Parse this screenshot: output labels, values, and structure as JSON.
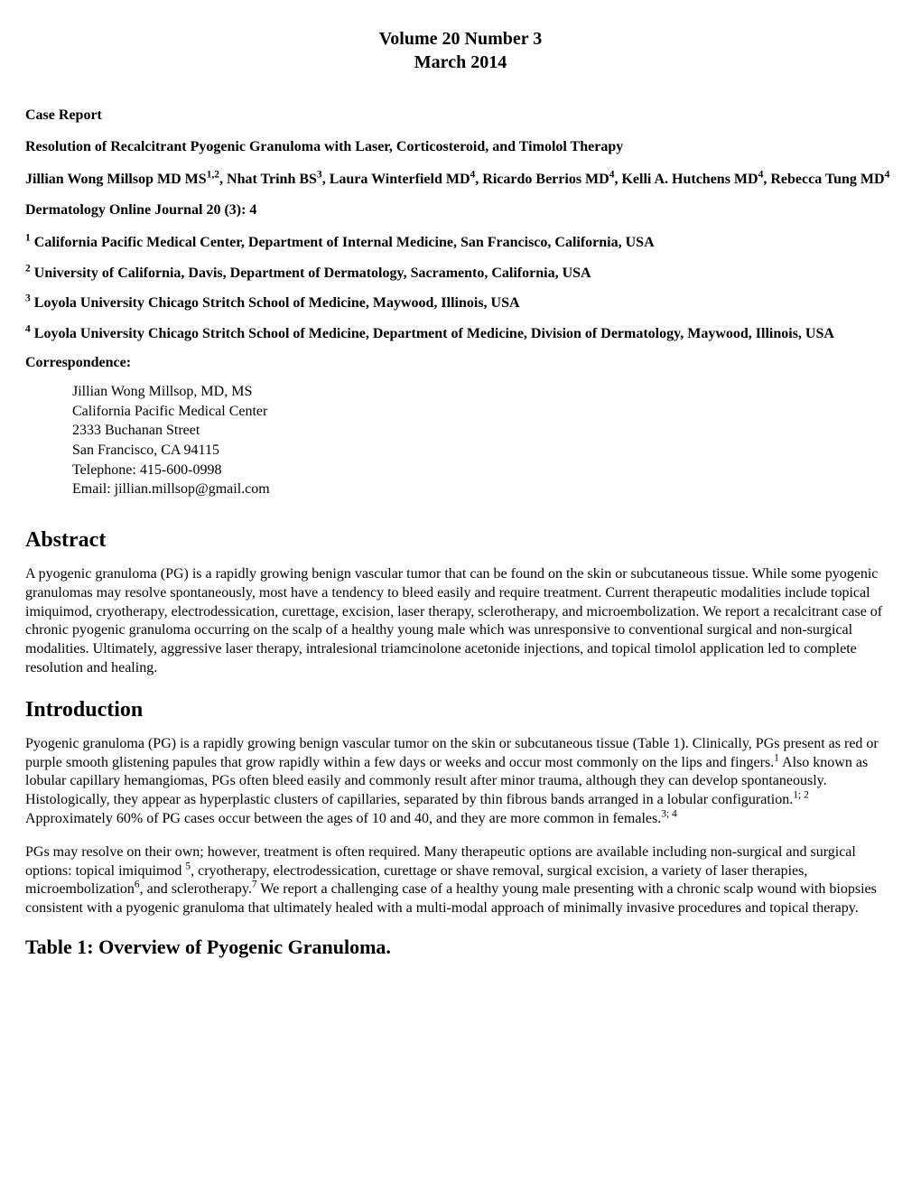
{
  "header": {
    "volume_line": "Volume 20 Number 3",
    "date_line": "March 2014"
  },
  "article": {
    "section_label": "Case Report",
    "title": "Resolution of Recalcitrant Pyogenic Granuloma with Laser, Corticosteroid, and Timolol Therapy",
    "authors_parts": {
      "a1_name": "Jillian Wong Millsop MD MS",
      "a1_sup": "1,2",
      "sep1": ", ",
      "a2_name": "Nhat Trinh BS",
      "a2_sup": "3",
      "sep2": ", ",
      "a3_name": "Laura Winterfield MD",
      "a3_sup": "4",
      "sep3": ", ",
      "a4_name": "Ricardo Berrios MD",
      "a4_sup": "4",
      "sep4": ", ",
      "a5_name": "Kelli A. Hutchens MD",
      "a5_sup": "4",
      "sep5": ", ",
      "a6_name": "Rebecca Tung MD",
      "a6_sup": "4"
    },
    "journal": "Dermatology Online Journal 20 (3): 4",
    "affiliations": {
      "a1_sup": "1",
      "a1_text": " California Pacific Medical Center, Department of Internal Medicine, San Francisco, California, USA",
      "a2_sup": "2",
      "a2_text": " University of California, Davis, Department of Dermatology, Sacramento, California, USA",
      "a3_sup": "3",
      "a3_text": " Loyola University Chicago Stritch School of Medicine, Maywood, Illinois, USA",
      "a4_sup": "4",
      "a4_text": " Loyola University Chicago Stritch School of Medicine, Department of Medicine, Division of Dermatology, Maywood, Illinois, USA"
    },
    "correspondence": {
      "label": "Correspondence:",
      "name": "Jillian Wong Millsop, MD, MS",
      "institution": "California Pacific Medical Center",
      "street": "2333 Buchanan Street",
      "city": "San Francisco, CA  94115",
      "phone": "Telephone: 415-600-0998",
      "email": "Email: jillian.millsop@gmail.com"
    }
  },
  "sections": {
    "abstract": {
      "heading": "Abstract",
      "body": "A pyogenic granuloma (PG) is a rapidly growing benign vascular tumor that can be found on the skin or subcutaneous tissue. While some pyogenic granulomas may resolve spontaneously, most have a tendency to bleed easily and require treatment. Current therapeutic modalities include topical imiquimod, cryotherapy, electrodessication, curettage, excision, laser therapy, sclerotherapy, and microembolization. We report a recalcitrant case of chronic pyogenic granuloma occurring on the scalp of a healthy young male which was unresponsive to conventional surgical and non-surgical modalities.  Ultimately, aggressive laser therapy, intralesional triamcinolone acetonide injections, and topical timolol application led to complete resolution and healing."
    },
    "introduction": {
      "heading": "Introduction",
      "p1": {
        "t1": "Pyogenic granuloma (PG) is a rapidly growing benign vascular tumor on the skin or subcutaneous tissue (Table 1). Clinically, PGs present as red or purple smooth glistening papules that grow rapidly within a few days or weeks and occur most commonly on the lips and fingers.",
        "s1": "1",
        "t2": " Also known as lobular capillary hemangiomas, PGs often bleed easily and commonly result after minor trauma, although they can develop spontaneously.  Histologically, they appear as hyperplastic clusters of capillaries, separated by thin fibrous bands arranged in a lobular configuration.",
        "s2": "1; 2",
        "t3": " Approximately 60% of PG cases occur between the ages of 10 and 40, and they are more common in females.",
        "s3": "3; 4"
      },
      "p2": {
        "t1": "PGs may resolve on their own; however, treatment is often required.  Many therapeutic options are available including non-surgical and surgical options:  topical imiquimod ",
        "s1": "5",
        "t2": ", cryotherapy, electrodessication, curettage or shave removal, surgical excision, a variety of laser therapies, microembolization",
        "s2": "6",
        "t3": ", and sclerotherapy.",
        "s3": "7",
        "t4": " We report a challenging case of a healthy young male presenting with a chronic scalp wound with biopsies consistent with a pyogenic granuloma that ultimately healed with a multi-modal approach of minimally invasive procedures and topical therapy."
      }
    },
    "table1_heading": "Table 1: Overview of Pyogenic Granuloma."
  }
}
